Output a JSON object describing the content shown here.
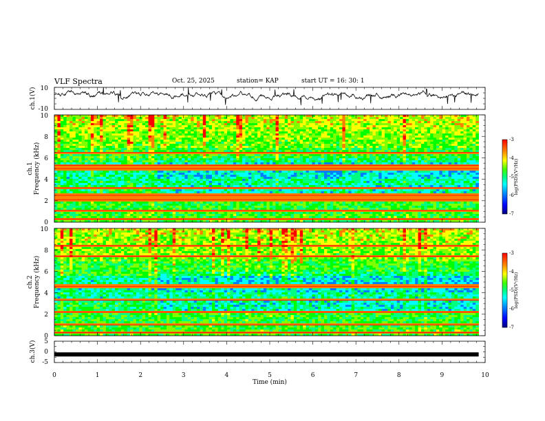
{
  "header": {
    "title": "VLF Spectra",
    "date": "Oct. 25, 2025",
    "station": "station= KAP",
    "start_ut": "start  UT  =   16: 30: 1"
  },
  "colors": {
    "spectrum": [
      "#000080",
      "#0000ff",
      "#0080ff",
      "#00ffff",
      "#00ff80",
      "#00ff00",
      "#80ff00",
      "#ffff00",
      "#ff8000",
      "#ff0000"
    ],
    "trace": "#000000",
    "axis": "#000000"
  },
  "chart_data": [
    {
      "type": "line",
      "ylabel": "ch.1(V)",
      "ylim": [
        -10,
        10
      ],
      "ytick_labels": [
        "10",
        "-10"
      ],
      "xlim": [
        0,
        10
      ],
      "description_series": "noisy voltage trace around +3 V"
    },
    {
      "type": "heatmap",
      "ylabel_top": "ch.1",
      "ylabel": "Frequency  (kHz)",
      "ylim": [
        0,
        10
      ],
      "ytick_labels": [
        "0",
        "2",
        "4",
        "6",
        "8",
        "10"
      ],
      "xlim": [
        0,
        9.85
      ],
      "colorbar": {
        "label": "log(PSD)(V²/Hz)",
        "range": [
          -7,
          -3
        ],
        "tick_labels": [
          "-3",
          "-4",
          "-5",
          "-6",
          "-7"
        ]
      },
      "lines_khz": [
        0.3,
        1.1,
        2.1,
        2.5,
        3.2,
        5.0,
        5.3,
        6.5
      ],
      "regime_change_min": 2.4
    },
    {
      "type": "heatmap",
      "ylabel_top": "ch.2",
      "ylabel": "Frequency  (kHz)",
      "ylim": [
        0,
        10
      ],
      "ytick_labels": [
        "0",
        "2",
        "4",
        "6",
        "8",
        "10"
      ],
      "xlim": [
        0,
        9.85
      ],
      "colorbar": {
        "label": "log(PSD)(V²/Hz)",
        "range": [
          -7,
          -3
        ],
        "tick_labels": [
          "-3",
          "-4",
          "-5",
          "-6",
          "-7"
        ]
      },
      "lines_khz": [
        0.3,
        1.0,
        2.2,
        3.3,
        4.6,
        7.4,
        8.4
      ],
      "regime_change_min": 2.4
    },
    {
      "type": "line",
      "ylabel": "ch.3(V)",
      "ylim": [
        -5,
        5
      ],
      "ytick_labels": [
        "5",
        "0",
        "-5"
      ],
      "xlim": [
        0,
        9.85
      ],
      "value": -1.2,
      "description_series": "thick flat trace near -1.2 V"
    }
  ],
  "xaxis": {
    "label": "Time  (min)",
    "range": [
      0,
      10
    ],
    "tick_labels": [
      "0",
      "1",
      "2",
      "3",
      "4",
      "5",
      "6",
      "7",
      "8",
      "9",
      "10"
    ]
  }
}
